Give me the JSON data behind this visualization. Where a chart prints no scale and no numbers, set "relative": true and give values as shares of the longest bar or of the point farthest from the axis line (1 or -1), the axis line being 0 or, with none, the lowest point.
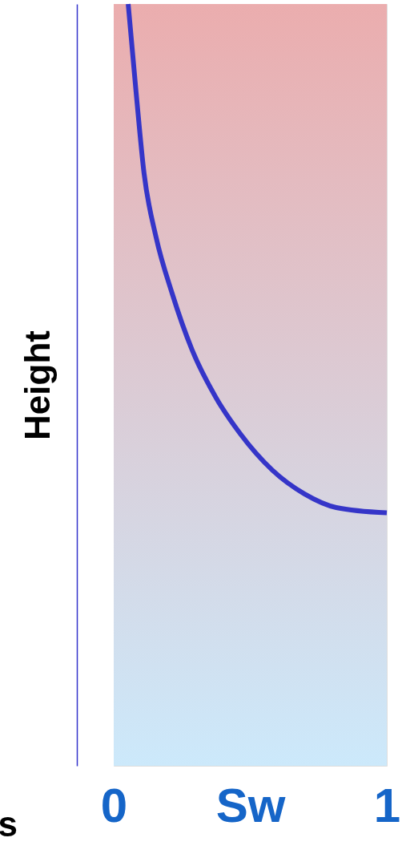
{
  "chart_data": {
    "type": "line",
    "relative": true,
    "ylabel": "Height",
    "xlim": [
      0,
      1
    ],
    "xticks": [
      0,
      {
        "value": 0.5,
        "label": "Sw"
      },
      1
    ],
    "tick_labels": "x",
    "grid": false,
    "marker": "none",
    "line_style": "solid",
    "annotations": [
      "s"
    ],
    "series": [
      {
        "color": "#3535c8",
        "x": [
          0.053,
          0.082,
          0.111,
          0.155,
          0.214,
          0.287,
          0.375,
          0.463,
          0.581,
          0.698,
          0.815,
          1.0
        ],
        "values": [
          1.0,
          0.884,
          0.778,
          0.694,
          0.62,
          0.546,
          0.483,
          0.436,
          0.388,
          0.357,
          0.339,
          0.332
        ]
      }
    ]
  }
}
